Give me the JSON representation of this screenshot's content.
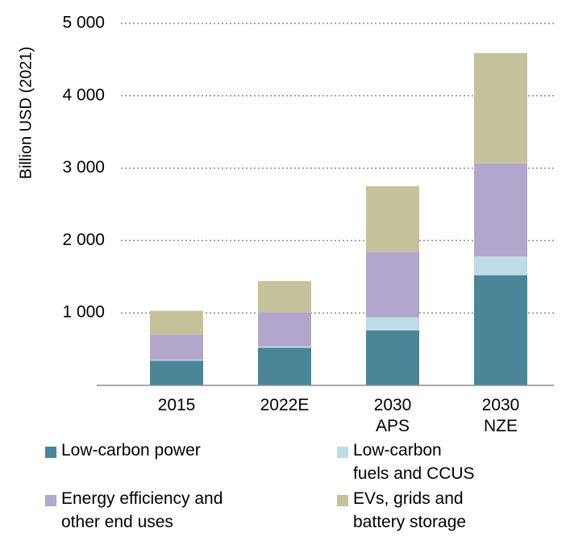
{
  "chart_data": {
    "type": "bar",
    "stacked": true,
    "ylabel": "Billion USD (2021)",
    "ylim": [
      0,
      5000
    ],
    "yticks": [
      1000,
      2000,
      3000,
      4000,
      5000
    ],
    "ytick_labels": [
      "1 000",
      "2 000",
      "3 000",
      "4 000",
      "5 000"
    ],
    "grid": true,
    "legend_position": "bottom",
    "categories": [
      {
        "line1": "2015",
        "line2": ""
      },
      {
        "line1": "2022E",
        "line2": ""
      },
      {
        "line1": "2030",
        "line2": "APS"
      },
      {
        "line1": "2030",
        "line2": "NZE"
      }
    ],
    "series": [
      {
        "name": "Low-carbon power",
        "color": "#4a8598",
        "values": [
          340,
          520,
          760,
          1520
        ]
      },
      {
        "name": "Low-carbon fuels and CCUS",
        "color": "#bedbe8",
        "values": [
          15,
          20,
          180,
          260
        ]
      },
      {
        "name": "Energy efficiency and other end uses",
        "color": "#b2a6cc",
        "values": [
          345,
          470,
          905,
          1285
        ]
      },
      {
        "name": "EVs, grids and battery storage",
        "color": "#c5c19a",
        "values": [
          330,
          430,
          905,
          1525
        ]
      }
    ]
  },
  "legend": [
    {
      "label": "Low-carbon power",
      "color": "#4a8598"
    },
    {
      "label": "Low-carbon\nfuels and CCUS",
      "color": "#bedbe8"
    },
    {
      "label": "Energy efficiency and\nother end uses",
      "color": "#b2a6cc"
    },
    {
      "label": "EVs, grids and\nbattery storage",
      "color": "#c5c19a"
    }
  ]
}
